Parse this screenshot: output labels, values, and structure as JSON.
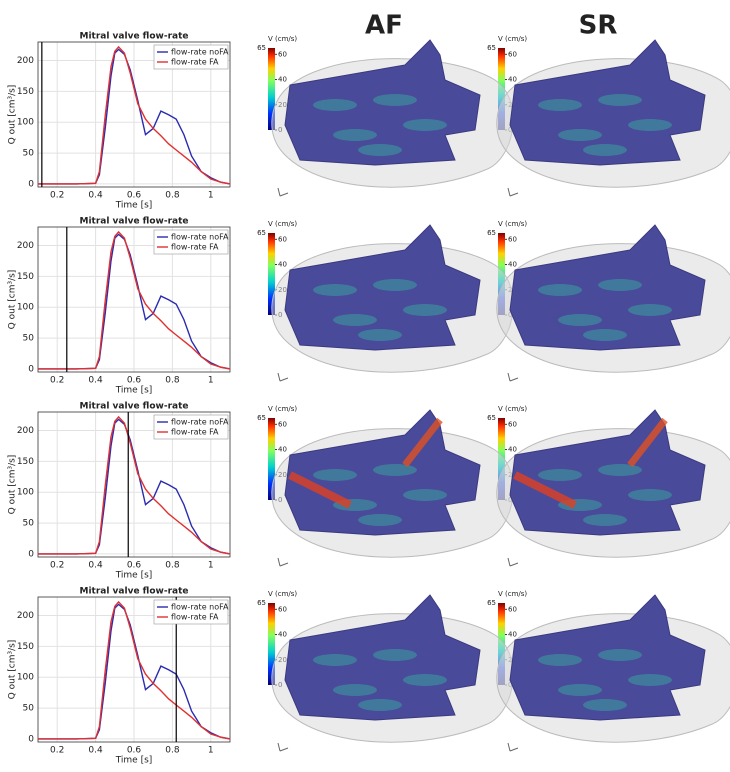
{
  "headers": [
    "AF",
    "SR"
  ],
  "colorbar": {
    "label": "V (cm/s)",
    "max": 65,
    "ticks": [
      0,
      20,
      40,
      60
    ]
  },
  "chart_data": [
    {
      "type": "line",
      "title": "Mitral valve flow-rate",
      "x_label": "Time [s]",
      "y_label": "Q out [cm³/s]",
      "x": [
        0.1,
        0.2,
        0.3,
        0.4,
        0.42,
        0.45,
        0.48,
        0.5,
        0.52,
        0.55,
        0.58,
        0.62,
        0.66,
        0.7,
        0.74,
        0.78,
        0.82,
        0.86,
        0.9,
        0.95,
        1.0,
        1.05,
        1.1
      ],
      "series": [
        {
          "name": "flow-rate noFA",
          "color": "#2b2bb0",
          "values": [
            0,
            0,
            0,
            1,
            15,
            90,
            175,
            212,
            218,
            210,
            185,
            135,
            80,
            90,
            118,
            112,
            105,
            80,
            45,
            20,
            10,
            3,
            0
          ]
        },
        {
          "name": "flow-rate FA",
          "color": "#e03030",
          "values": [
            0,
            0,
            0,
            1,
            20,
            110,
            190,
            215,
            222,
            212,
            180,
            130,
            105,
            90,
            78,
            65,
            55,
            45,
            35,
            20,
            8,
            3,
            0
          ]
        }
      ],
      "xlim": [
        0.1,
        1.1
      ],
      "xticks": [
        0.2,
        0.4,
        0.6,
        0.8,
        1
      ],
      "ylim": [
        -5,
        230
      ],
      "yticks": [
        0,
        50,
        100,
        150,
        200
      ],
      "grid": true,
      "legend": "top-right",
      "marker_x": 0.12
    },
    {
      "type": "line",
      "title": "Mitral valve flow-rate",
      "x_label": "Time [s]",
      "y_label": "Q out [cm³/s]",
      "x": [
        0.1,
        0.2,
        0.3,
        0.4,
        0.42,
        0.45,
        0.48,
        0.5,
        0.52,
        0.55,
        0.58,
        0.62,
        0.66,
        0.7,
        0.74,
        0.78,
        0.82,
        0.86,
        0.9,
        0.95,
        1.0,
        1.05,
        1.1
      ],
      "series": [
        {
          "name": "flow-rate noFA",
          "color": "#2b2bb0",
          "values": [
            0,
            0,
            0,
            1,
            15,
            90,
            175,
            212,
            218,
            210,
            185,
            135,
            80,
            90,
            118,
            112,
            105,
            80,
            45,
            20,
            10,
            3,
            0
          ]
        },
        {
          "name": "flow-rate FA",
          "color": "#e03030",
          "values": [
            0,
            0,
            0,
            1,
            20,
            110,
            190,
            215,
            222,
            212,
            180,
            130,
            105,
            90,
            78,
            65,
            55,
            45,
            35,
            20,
            8,
            3,
            0
          ]
        }
      ],
      "xlim": [
        0.1,
        1.1
      ],
      "xticks": [
        0.2,
        0.4,
        0.6,
        0.8,
        1
      ],
      "ylim": [
        -5,
        230
      ],
      "yticks": [
        0,
        50,
        100,
        150,
        200
      ],
      "grid": true,
      "legend": "top-right",
      "marker_x": 0.25
    },
    {
      "type": "line",
      "title": "Mitral valve flow-rate",
      "x_label": "Time [s]",
      "y_label": "Q out [cm³/s]",
      "x": [
        0.1,
        0.2,
        0.3,
        0.4,
        0.42,
        0.45,
        0.48,
        0.5,
        0.52,
        0.55,
        0.58,
        0.62,
        0.66,
        0.7,
        0.74,
        0.78,
        0.82,
        0.86,
        0.9,
        0.95,
        1.0,
        1.05,
        1.1
      ],
      "series": [
        {
          "name": "flow-rate noFA",
          "color": "#2b2bb0",
          "values": [
            0,
            0,
            0,
            1,
            15,
            90,
            175,
            212,
            218,
            210,
            185,
            135,
            80,
            90,
            118,
            112,
            105,
            80,
            45,
            20,
            10,
            3,
            0
          ]
        },
        {
          "name": "flow-rate FA",
          "color": "#e03030",
          "values": [
            0,
            0,
            0,
            1,
            20,
            110,
            190,
            215,
            222,
            212,
            180,
            130,
            105,
            90,
            78,
            65,
            55,
            45,
            35,
            20,
            8,
            3,
            0
          ]
        }
      ],
      "xlim": [
        0.1,
        1.1
      ],
      "xticks": [
        0.2,
        0.4,
        0.6,
        0.8,
        1
      ],
      "ylim": [
        -5,
        230
      ],
      "yticks": [
        0,
        50,
        100,
        150,
        200
      ],
      "grid": true,
      "legend": "top-right",
      "marker_x": 0.57
    },
    {
      "type": "line",
      "title": "Mitral valve flow-rate",
      "x_label": "Time [s]",
      "y_label": "Q out [cm³/s]",
      "x": [
        0.1,
        0.2,
        0.3,
        0.4,
        0.42,
        0.45,
        0.48,
        0.5,
        0.52,
        0.55,
        0.58,
        0.62,
        0.66,
        0.7,
        0.74,
        0.78,
        0.82,
        0.86,
        0.9,
        0.95,
        1.0,
        1.05,
        1.1
      ],
      "series": [
        {
          "name": "flow-rate noFA",
          "color": "#2b2bb0",
          "values": [
            0,
            0,
            0,
            1,
            15,
            90,
            175,
            212,
            218,
            210,
            185,
            135,
            80,
            90,
            118,
            112,
            105,
            80,
            45,
            20,
            10,
            3,
            0
          ]
        },
        {
          "name": "flow-rate FA",
          "color": "#e03030",
          "values": [
            0,
            0,
            0,
            1,
            20,
            110,
            190,
            215,
            222,
            212,
            180,
            130,
            105,
            90,
            78,
            65,
            55,
            45,
            35,
            20,
            8,
            3,
            0
          ]
        }
      ],
      "xlim": [
        0.1,
        1.1
      ],
      "xticks": [
        0.2,
        0.4,
        0.6,
        0.8,
        1
      ],
      "ylim": [
        -5,
        230
      ],
      "yticks": [
        0,
        50,
        100,
        150,
        200
      ],
      "grid": true,
      "legend": "top-right",
      "marker_x": 0.82
    }
  ]
}
